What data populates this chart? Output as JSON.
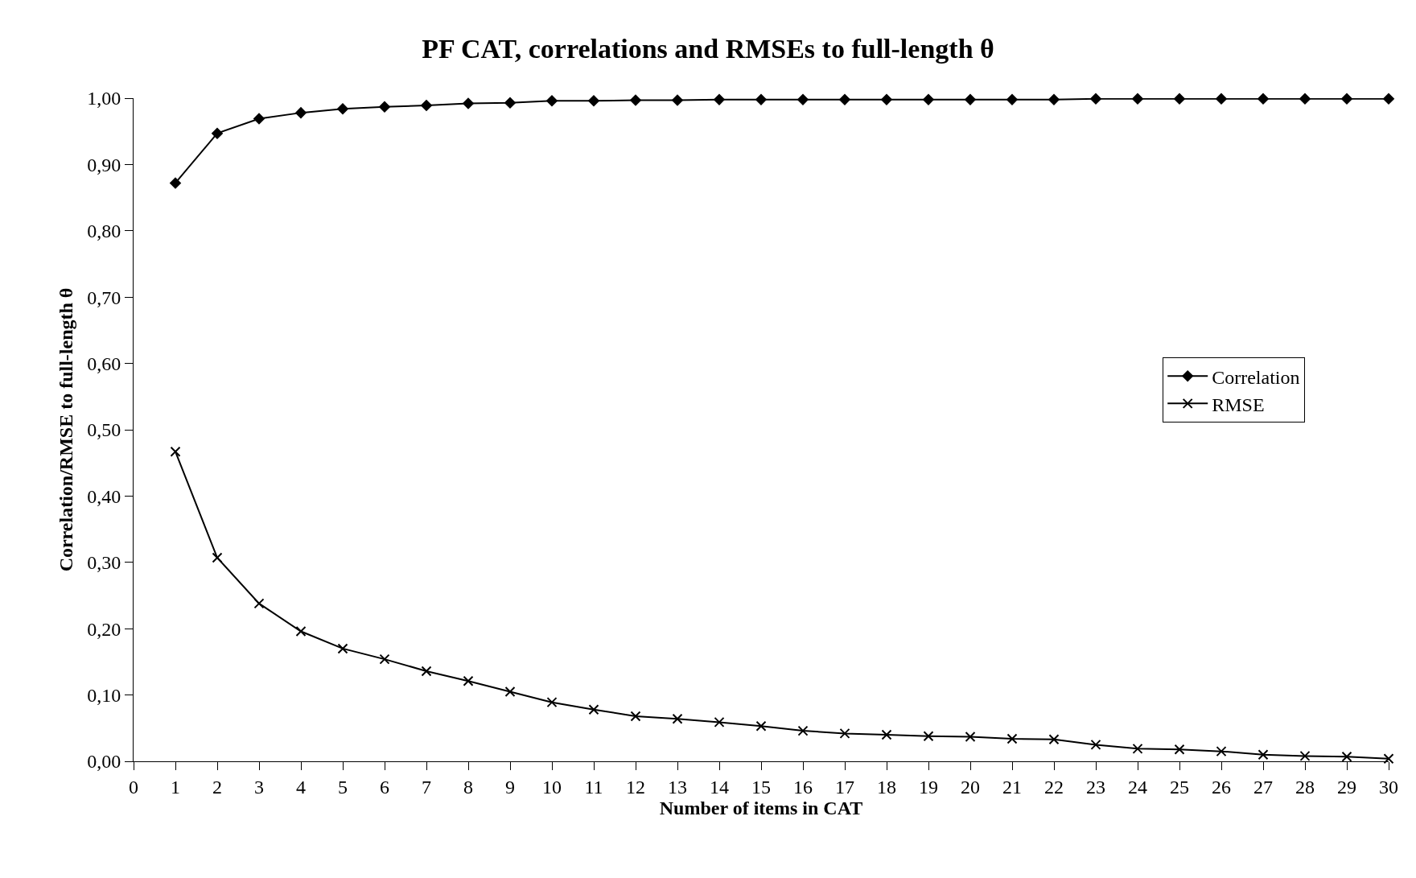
{
  "chart_data": {
    "type": "line",
    "title": "PF CAT, correlations and RMSEs to full-length θ",
    "xlabel": "Number of items in CAT",
    "ylabel": "Correlation/RMSE to full-length θ",
    "x": [
      1,
      2,
      3,
      4,
      5,
      6,
      7,
      8,
      9,
      10,
      11,
      12,
      13,
      14,
      15,
      16,
      17,
      18,
      19,
      20,
      21,
      22,
      23,
      24,
      25,
      26,
      27,
      28,
      29,
      30
    ],
    "series": [
      {
        "name": "Correlation",
        "color": "#000000",
        "marker": "diamond",
        "values": [
          0.872,
          0.947,
          0.969,
          0.978,
          0.984,
          0.987,
          0.989,
          0.992,
          0.993,
          0.996,
          0.996,
          0.997,
          0.997,
          0.998,
          0.998,
          0.998,
          0.998,
          0.998,
          0.998,
          0.998,
          0.998,
          0.998,
          0.999,
          0.999,
          0.999,
          0.999,
          0.999,
          0.999,
          0.999,
          0.999
        ]
      },
      {
        "name": "RMSE",
        "color": "#000000",
        "marker": "cross",
        "values": [
          0.467,
          0.307,
          0.238,
          0.196,
          0.17,
          0.154,
          0.136,
          0.121,
          0.105,
          0.089,
          0.078,
          0.068,
          0.064,
          0.059,
          0.053,
          0.046,
          0.042,
          0.04,
          0.038,
          0.037,
          0.034,
          0.033,
          0.025,
          0.019,
          0.018,
          0.015,
          0.01,
          0.008,
          0.007,
          0.004
        ]
      }
    ],
    "xlim": [
      0,
      30
    ],
    "xticks": [
      0,
      1,
      2,
      3,
      4,
      5,
      6,
      7,
      8,
      9,
      10,
      11,
      12,
      13,
      14,
      15,
      16,
      17,
      18,
      19,
      20,
      21,
      22,
      23,
      24,
      25,
      26,
      27,
      28,
      29,
      30
    ],
    "ylim": [
      0,
      1
    ],
    "yticks": [
      {
        "value": 0,
        "label": "0,00"
      },
      {
        "value": 0.1,
        "label": "0,10"
      },
      {
        "value": 0.2,
        "label": "0,20"
      },
      {
        "value": 0.3,
        "label": "0,30"
      },
      {
        "value": 0.4,
        "label": "0,40"
      },
      {
        "value": 0.5,
        "label": "0,50"
      },
      {
        "value": 0.6,
        "label": "0,60"
      },
      {
        "value": 0.7,
        "label": "0,70"
      },
      {
        "value": 0.8,
        "label": "0,80"
      },
      {
        "value": 0.9,
        "label": "0,90"
      },
      {
        "value": 1,
        "label": "1,00"
      }
    ],
    "grid": false,
    "legend": "right",
    "line_style": "solid"
  }
}
